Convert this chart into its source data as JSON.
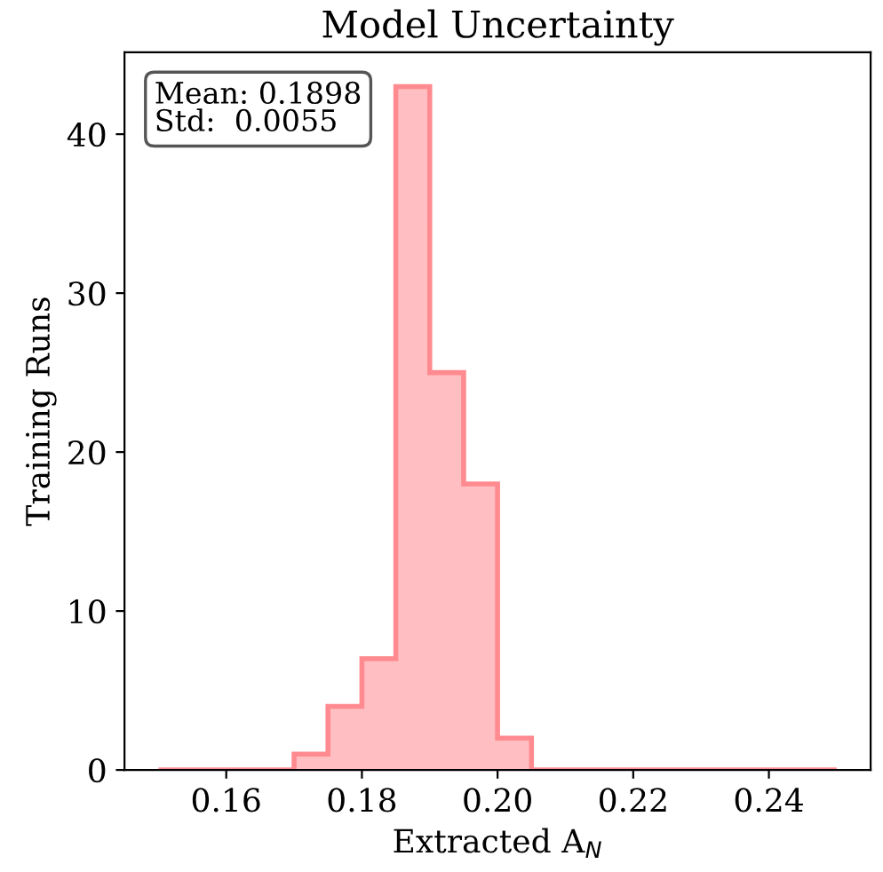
{
  "chart_data": {
    "type": "histogram",
    "title": "Model Uncertainty",
    "xlabel": "Extracted A$_{N}$",
    "ylabel": "Training Runs",
    "bins": [
      0.15,
      0.155,
      0.16,
      0.165,
      0.17,
      0.175,
      0.18,
      0.185,
      0.19,
      0.195,
      0.2,
      0.205,
      0.21,
      0.215,
      0.22,
      0.225,
      0.23,
      0.235,
      0.24,
      0.245,
      0.25
    ],
    "values": [
      0,
      0,
      0,
      0,
      1,
      4,
      7,
      43,
      25,
      18,
      2,
      0,
      0,
      0,
      0,
      0,
      0,
      0,
      0,
      0
    ],
    "color": "#ff8a8f",
    "xlim": [
      0.145,
      0.255
    ],
    "xticks": [
      {
        "value": 0.16,
        "label": "0.16"
      },
      {
        "value": 0.18,
        "label": "0.18"
      },
      {
        "value": 0.2,
        "label": "0.20"
      },
      {
        "value": 0.22,
        "label": "0.22"
      },
      {
        "value": 0.24,
        "label": "0.24"
      }
    ],
    "ylim": [
      0,
      45.15
    ],
    "yticks": [
      0,
      10,
      20,
      30,
      40
    ],
    "annotations": [
      "Mean: 0.1898\nStd:  0.0055"
    ],
    "grid": false,
    "legend": false
  }
}
